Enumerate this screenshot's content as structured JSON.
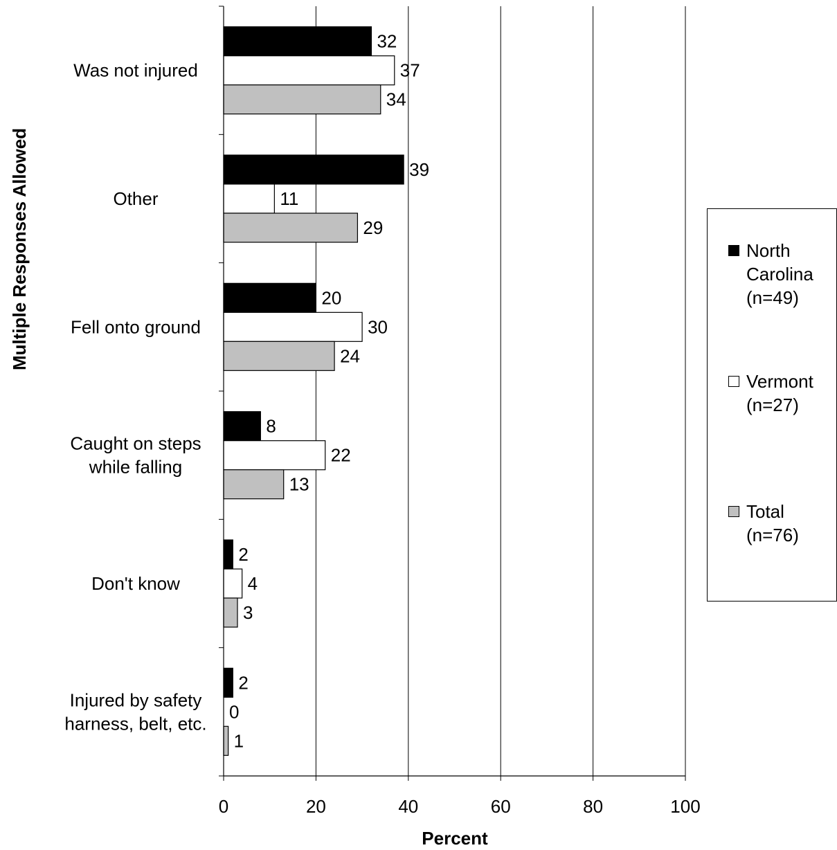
{
  "chart_data": {
    "type": "bar",
    "orientation": "horizontal",
    "categories": [
      "Was not injured",
      "Other",
      "Fell onto ground",
      "Caught on steps\nwhile falling",
      "Don't know",
      "Injured by safety\nharness, belt, etc."
    ],
    "series": [
      {
        "name": "North\nCarolina\n(n=49)",
        "color": "#000000",
        "values": [
          32,
          39,
          20,
          8,
          2,
          2
        ]
      },
      {
        "name": "Vermont\n(n=27)",
        "color": "#ffffff",
        "values": [
          37,
          11,
          30,
          22,
          4,
          0
        ]
      },
      {
        "name": "Total\n(n=76)",
        "color": "#c0c0c0",
        "values": [
          34,
          29,
          24,
          13,
          3,
          1
        ]
      }
    ],
    "title": "",
    "xlabel": "Percent",
    "ylabel": "Multiple Responses Allowed",
    "xlim": [
      0,
      100
    ],
    "xticks": [
      "0",
      "20",
      "40",
      "60",
      "80",
      "100"
    ],
    "grid": true,
    "legend_position": "right"
  }
}
